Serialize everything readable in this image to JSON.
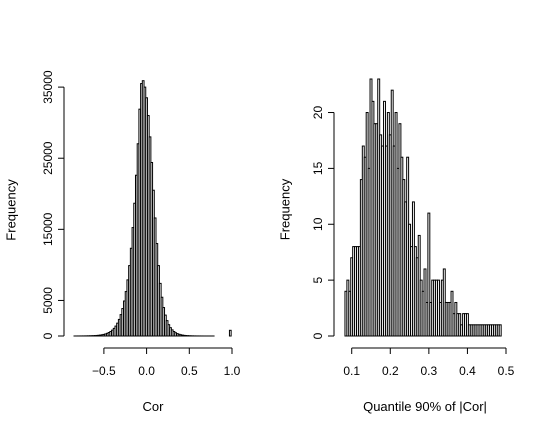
{
  "chart_data": [
    {
      "type": "bar",
      "title": "",
      "xlabel": "Cor",
      "ylabel": "Frequency",
      "xlim": [
        -0.85,
        1.0
      ],
      "ylim": [
        0,
        36000
      ],
      "x_ticks": [
        -0.5,
        0.0,
        0.5,
        1.0
      ],
      "x_tick_labels": [
        "−0.5",
        "0.0",
        "0.5",
        "1.0"
      ],
      "y_ticks": [
        0,
        5000,
        15000,
        25000,
        35000
      ],
      "y_tick_labels": [
        "0",
        "5000",
        "15000",
        "25000",
        "35000"
      ],
      "bin_width": 0.02,
      "x": [
        -0.84,
        -0.82,
        -0.8,
        -0.78,
        -0.76,
        -0.74,
        -0.72,
        -0.7,
        -0.68,
        -0.66,
        -0.64,
        -0.62,
        -0.6,
        -0.58,
        -0.56,
        -0.54,
        -0.52,
        -0.5,
        -0.48,
        -0.46,
        -0.44,
        -0.42,
        -0.4,
        -0.38,
        -0.36,
        -0.34,
        -0.32,
        -0.3,
        -0.28,
        -0.26,
        -0.24,
        -0.22,
        -0.2,
        -0.18,
        -0.16,
        -0.14,
        -0.12,
        -0.1,
        -0.08,
        -0.06,
        -0.04,
        -0.02,
        0.0,
        0.02,
        0.04,
        0.06,
        0.08,
        0.1,
        0.12,
        0.14,
        0.16,
        0.18,
        0.2,
        0.22,
        0.24,
        0.26,
        0.28,
        0.3,
        0.32,
        0.34,
        0.36,
        0.38,
        0.4,
        0.42,
        0.44,
        0.46,
        0.48,
        0.5,
        0.52,
        0.54,
        0.56,
        0.58,
        0.6,
        0.62,
        0.64,
        0.66,
        0.68,
        0.7,
        0.72,
        0.74,
        0.76,
        0.78,
        0.8,
        0.82,
        0.84,
        0.86,
        0.88,
        0.9,
        0.92,
        0.94,
        0.96,
        0.98
      ],
      "values": [
        2,
        3,
        4,
        6,
        8,
        10,
        13,
        17,
        22,
        28,
        36,
        47,
        61,
        79,
        102,
        133,
        172,
        223,
        290,
        376,
        489,
        636,
        826,
        1073,
        1393,
        1805,
        2333,
        3006,
        3855,
        4922,
        6250,
        7892,
        9902,
        12336,
        15247,
        18670,
        22610,
        27034,
        31900,
        35500,
        35900,
        35000,
        33500,
        31000,
        28000,
        24400,
        20500,
        16600,
        13000,
        9900,
        7400,
        5450,
        4000,
        2940,
        2160,
        1590,
        1170,
        860,
        630,
        460,
        337,
        245,
        178,
        128,
        92,
        66,
        47,
        34,
        24,
        17,
        12,
        9,
        7,
        5,
        4,
        3,
        2,
        2,
        1,
        1,
        1,
        1,
        0,
        0,
        0,
        0,
        0,
        0,
        0,
        0,
        0,
        800
      ]
    },
    {
      "type": "bar",
      "title": "",
      "xlabel": "Quantile 90% of |Cor|",
      "ylabel": "Frequency",
      "xlim": [
        0.08,
        0.5
      ],
      "ylim": [
        0,
        23
      ],
      "x_ticks": [
        0.1,
        0.2,
        0.3,
        0.4,
        0.5
      ],
      "x_tick_labels": [
        "0.1",
        "0.2",
        "0.3",
        "0.4",
        "0.5"
      ],
      "y_ticks": [
        0,
        5,
        10,
        15,
        20
      ],
      "y_tick_labels": [
        "0",
        "5",
        "10",
        "15",
        "20"
      ],
      "bin_width": 0.005,
      "x": [
        0.085,
        0.09,
        0.095,
        0.1,
        0.105,
        0.11,
        0.115,
        0.12,
        0.125,
        0.13,
        0.135,
        0.14,
        0.145,
        0.15,
        0.155,
        0.16,
        0.165,
        0.17,
        0.175,
        0.18,
        0.185,
        0.19,
        0.195,
        0.2,
        0.205,
        0.21,
        0.215,
        0.22,
        0.225,
        0.23,
        0.235,
        0.24,
        0.245,
        0.25,
        0.255,
        0.26,
        0.265,
        0.27,
        0.275,
        0.28,
        0.285,
        0.29,
        0.295,
        0.3,
        0.305,
        0.31,
        0.315,
        0.32,
        0.325,
        0.33,
        0.335,
        0.34,
        0.345,
        0.35,
        0.355,
        0.36,
        0.365,
        0.37,
        0.375,
        0.38,
        0.385,
        0.39,
        0.395,
        0.4,
        0.405,
        0.41,
        0.415,
        0.42,
        0.425,
        0.43,
        0.435,
        0.44,
        0.445,
        0.45,
        0.455,
        0.46,
        0.465,
        0.47,
        0.475,
        0.48,
        0.485
      ],
      "values": [
        4,
        5,
        4,
        7,
        8,
        8,
        8,
        8,
        14,
        17,
        16,
        20,
        15,
        23,
        21,
        19,
        19,
        23,
        18,
        17,
        21,
        17,
        20,
        18,
        22,
        17,
        20,
        15,
        19,
        16,
        14,
        12,
        16,
        10,
        8,
        12,
        8,
        7,
        9,
        5,
        4,
        6,
        3,
        11,
        3,
        5,
        5,
        5,
        5,
        3,
        5,
        6,
        3,
        3,
        3,
        4,
        2,
        3,
        2,
        2,
        1,
        2,
        2,
        2,
        1,
        1,
        1,
        1,
        1,
        1,
        1,
        1,
        1,
        1,
        1,
        1,
        1,
        1,
        1,
        1,
        1
      ]
    }
  ]
}
